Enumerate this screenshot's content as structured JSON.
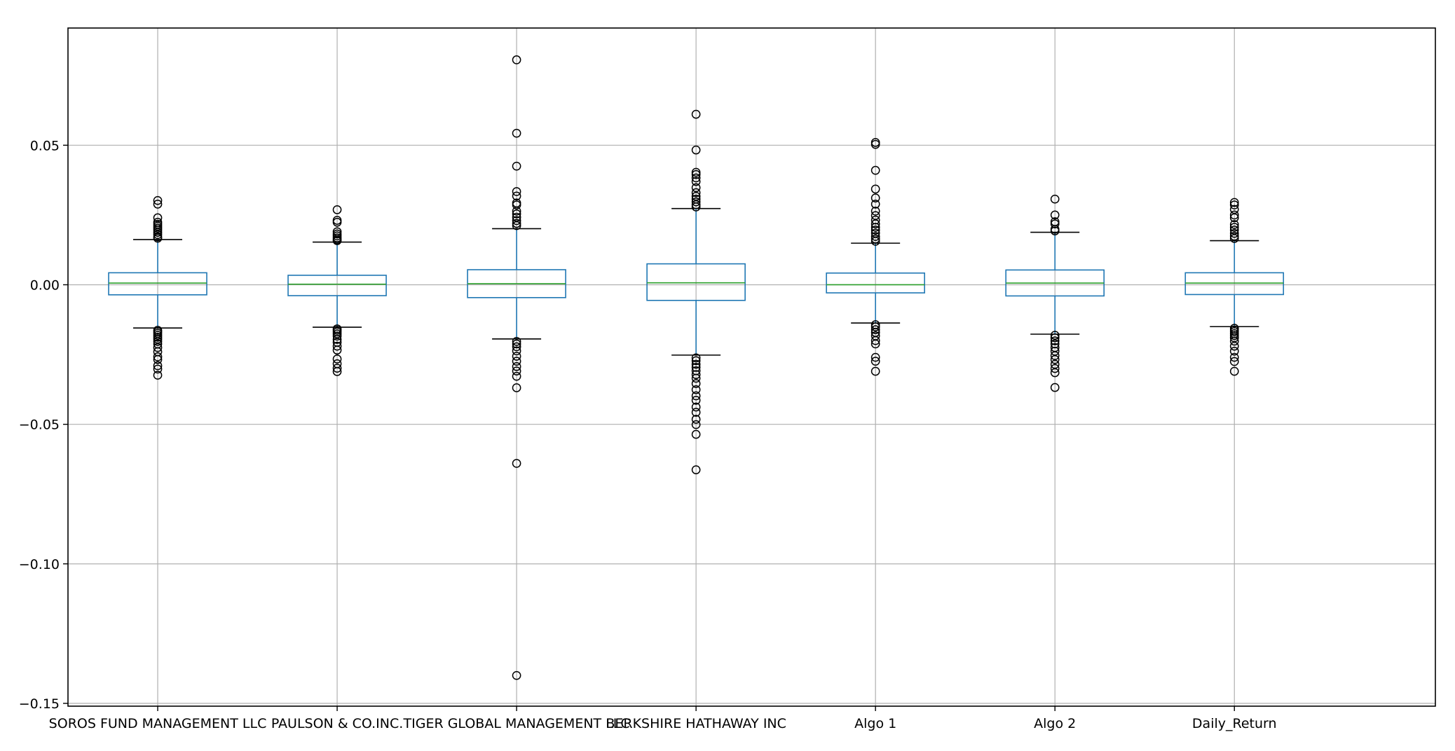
{
  "chart_data": {
    "type": "box",
    "title": "",
    "xlabel": "",
    "ylabel": "",
    "ylim": [
      -0.151,
      0.092
    ],
    "grid": true,
    "yticks": [
      {
        "value": 0.05,
        "label": "0.05"
      },
      {
        "value": 0.0,
        "label": "0.00"
      },
      {
        "value": -0.05,
        "label": "−0.05"
      },
      {
        "value": -0.1,
        "label": "−0.10"
      },
      {
        "value": -0.15,
        "label": "−0.15"
      }
    ],
    "categories": [
      "SOROS FUND MANAGEMENT LLC",
      "PAULSON & CO.INC.",
      "TIGER GLOBAL MANAGEMENT LLC",
      "BERKSHIRE HATHAWAY INC",
      "Algo 1",
      "Algo 2",
      "Daily_Return"
    ],
    "boxes": [
      {
        "name": "SOROS FUND MANAGEMENT LLC",
        "whisker_low": -0.0155,
        "q1": -0.0036,
        "median": 0.0006,
        "q3": 0.0043,
        "whisker_high": 0.0162,
        "outliers": [
          0.0302,
          0.0289,
          0.024,
          0.0224,
          0.0217,
          0.021,
          0.0203,
          0.0196,
          0.0188,
          0.018,
          0.0172,
          0.0167,
          -0.0163,
          -0.0168,
          -0.0174,
          -0.0181,
          -0.0188,
          -0.0195,
          -0.0203,
          -0.0212,
          -0.0225,
          -0.024,
          -0.0258,
          -0.0268,
          -0.029,
          -0.0302,
          -0.0324
        ]
      },
      {
        "name": "PAULSON & CO.INC.",
        "whisker_low": -0.0152,
        "q1": -0.0039,
        "median": 0.0002,
        "q3": 0.0034,
        "whisker_high": 0.0153,
        "outliers": [
          0.0269,
          0.0231,
          0.0224,
          0.019,
          0.0182,
          0.0175,
          0.0168,
          0.0162,
          0.0158,
          -0.0158,
          -0.0163,
          -0.0169,
          -0.0176,
          -0.0184,
          -0.0196,
          -0.0206,
          -0.022,
          -0.0234,
          -0.0266,
          -0.0283,
          -0.0299,
          -0.0311
        ]
      },
      {
        "name": "TIGER GLOBAL MANAGEMENT LLC",
        "whisker_low": -0.0194,
        "q1": -0.0046,
        "median": 0.0004,
        "q3": 0.0054,
        "whisker_high": 0.0201,
        "outliers": [
          0.0806,
          0.0543,
          0.0425,
          0.0334,
          0.0318,
          0.0293,
          0.0286,
          0.0264,
          0.0254,
          0.0242,
          0.023,
          0.022,
          0.0212,
          -0.0203,
          -0.0212,
          -0.0222,
          -0.0237,
          -0.0256,
          -0.0274,
          -0.0293,
          -0.0309,
          -0.0328,
          -0.0369,
          -0.064,
          -0.14
        ]
      },
      {
        "name": "BERKSHIRE HATHAWAY INC",
        "whisker_low": -0.0252,
        "q1": -0.0056,
        "median": 0.0007,
        "q3": 0.0075,
        "whisker_high": 0.0273,
        "outliers": [
          0.0611,
          0.0483,
          0.0403,
          0.0395,
          0.0383,
          0.037,
          0.0348,
          0.033,
          0.0317,
          0.0307,
          0.0297,
          0.0287,
          0.0279,
          -0.0262,
          -0.0272,
          -0.0285,
          -0.0296,
          -0.0308,
          -0.0322,
          -0.0335,
          -0.0354,
          -0.0376,
          -0.0398,
          -0.0414,
          -0.0438,
          -0.0457,
          -0.0482,
          -0.0501,
          -0.0536,
          -0.0663
        ]
      },
      {
        "name": "Algo 1",
        "whisker_low": -0.0137,
        "q1": -0.0029,
        "median": 0.0,
        "q3": 0.0042,
        "whisker_high": 0.0149,
        "outliers": [
          0.051,
          0.0503,
          0.041,
          0.0343,
          0.0311,
          0.0289,
          0.0264,
          0.0248,
          0.0232,
          0.0218,
          0.0206,
          0.0196,
          0.0185,
          0.0173,
          0.0164,
          0.0156,
          -0.0143,
          -0.0151,
          -0.0161,
          -0.0171,
          -0.0183,
          -0.02,
          -0.0212,
          -0.026,
          -0.0274,
          -0.031
        ]
      },
      {
        "name": "Algo 2",
        "whisker_low": -0.0177,
        "q1": -0.004,
        "median": 0.0006,
        "q3": 0.0053,
        "whisker_high": 0.0188,
        "outliers": [
          0.0307,
          0.025,
          0.0226,
          0.0218,
          0.0199,
          0.0193,
          -0.0181,
          -0.019,
          -0.0201,
          -0.0212,
          -0.0225,
          -0.0238,
          -0.0254,
          -0.0268,
          -0.0285,
          -0.03,
          -0.0315,
          -0.0368
        ]
      },
      {
        "name": "Daily_Return",
        "whisker_low": -0.015,
        "q1": -0.0035,
        "median": 0.0006,
        "q3": 0.0043,
        "whisker_high": 0.0158,
        "outliers": [
          0.0295,
          0.0286,
          0.027,
          0.025,
          0.024,
          0.0216,
          0.0206,
          0.0196,
          0.0184,
          0.0174,
          0.0166,
          -0.0156,
          -0.0162,
          -0.0168,
          -0.0175,
          -0.0182,
          -0.019,
          -0.0202,
          -0.022,
          -0.0238,
          -0.026,
          -0.0275,
          -0.031
        ]
      }
    ]
  },
  "colors": {
    "box": "#1f77b4",
    "median": "#2ca02c",
    "whisker_cap": "#000000",
    "outlier": "#000000",
    "grid": "#b0b0b0",
    "axis": "#000000"
  }
}
